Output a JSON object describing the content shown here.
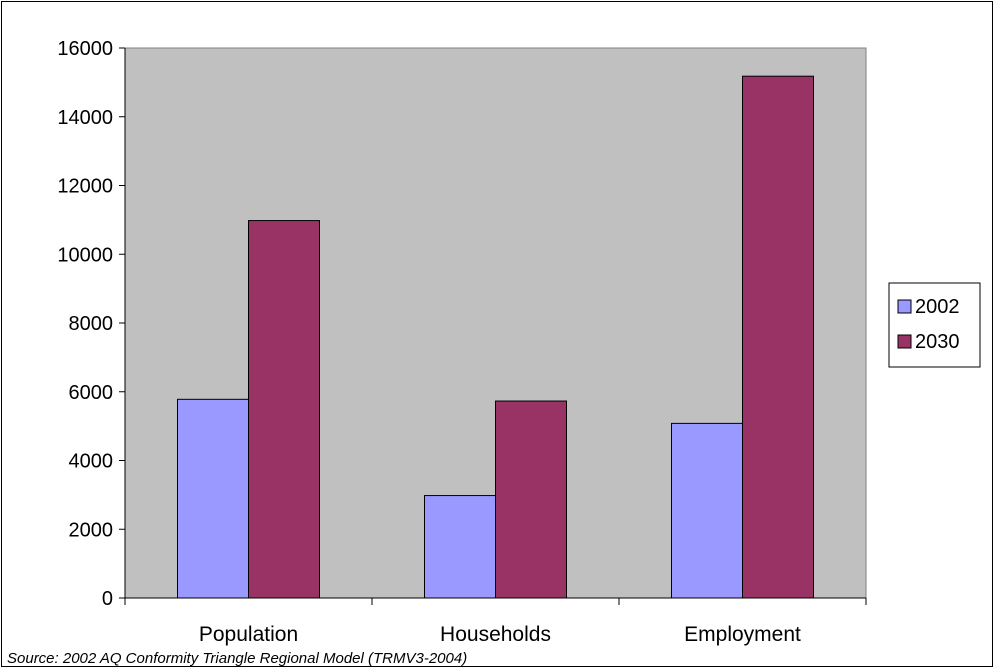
{
  "chart_data": {
    "type": "bar",
    "title": "",
    "xlabel": "",
    "ylabel": "",
    "categories": [
      "Population",
      "Households",
      "Employment"
    ],
    "series": [
      {
        "name": "2002",
        "values": [
          5780,
          2980,
          5080
        ],
        "color": "#9999FF"
      },
      {
        "name": "2030",
        "values": [
          10980,
          5730,
          15180
        ],
        "color": "#993366"
      }
    ],
    "ylim": [
      0,
      16000
    ],
    "yticks": [
      0,
      2000,
      4000,
      6000,
      8000,
      10000,
      12000,
      14000,
      16000
    ],
    "grid": false,
    "plot_background": "#C0C0C0",
    "legend_position": "right"
  },
  "source_note": "Source: 2002 AQ Conformity Triangle Regional Model (TRMV3-2004)"
}
